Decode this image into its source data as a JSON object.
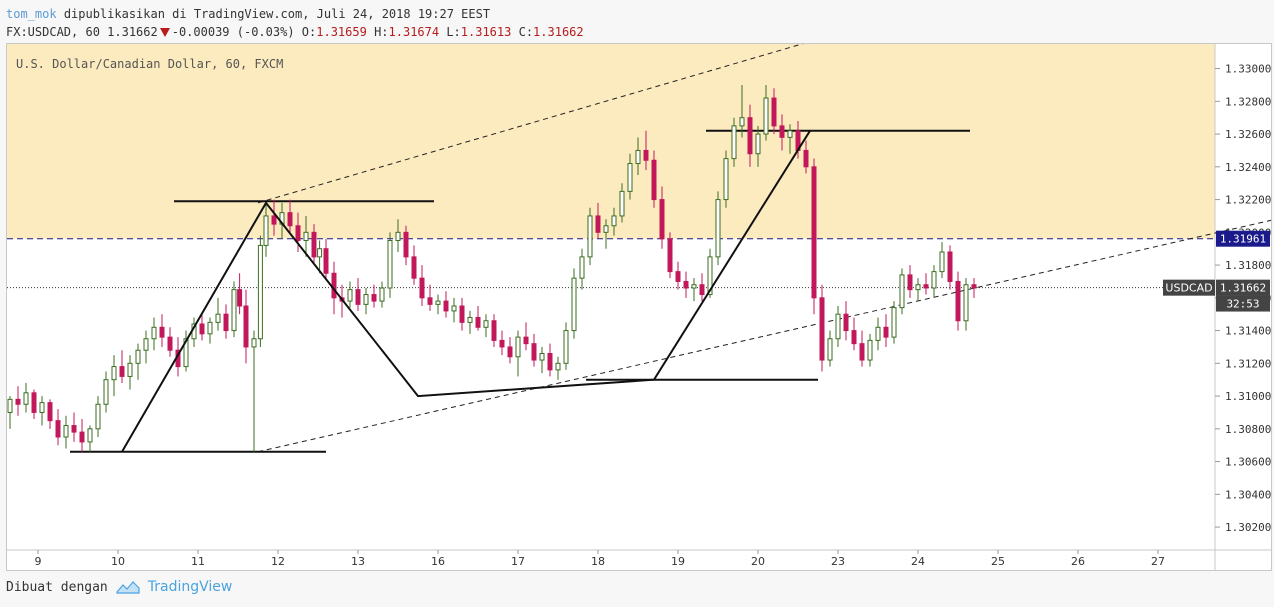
{
  "header": {
    "author": "tom_mok",
    "published": "dipublikasikan di TradingView.com, Juli 24, 2018 19:27 EEST",
    "symbol": "FX:USDCAD, 60",
    "last": "1.31662",
    "change": "-0.00039 (-0.03%)",
    "o_label": "O:",
    "o_value": "1.31659",
    "h_label": "H:",
    "h_value": "1.31674",
    "l_label": "L:",
    "l_value": "1.31613",
    "c_label": "C:",
    "c_value": "1.31662"
  },
  "chart_title": "U.S. Dollar/Canadian Dollar, 60, FXCM",
  "footer": {
    "made_with": "Dibuat dengan",
    "brand": "TradingView"
  },
  "chart_data": {
    "type": "candlestick",
    "x_ticks": [
      "9",
      "10",
      "11",
      "12",
      "13",
      "16",
      "17",
      "18",
      "19",
      "20",
      "23",
      "24",
      "25",
      "26",
      "27"
    ],
    "y_ticks": [
      "1.33000",
      "1.32800",
      "1.32600",
      "1.32400",
      "1.32200",
      "1.32000",
      "1.31800",
      "1.31600",
      "1.31400",
      "1.31200",
      "1.31000",
      "1.30800",
      "1.30600",
      "1.30400",
      "1.30200"
    ],
    "ylim": [
      1.3006,
      1.3315
    ],
    "price_labels": [
      {
        "text": "1.31961",
        "value": 1.31961,
        "color": "#1a1a8c"
      },
      {
        "text": "USDCAD",
        "value": 1.31662,
        "color": "#333333"
      },
      {
        "text": "1.31662",
        "value": 1.31662,
        "color": "#333333"
      },
      {
        "text": "32:53",
        "value": 1.31565,
        "color": "#333333"
      }
    ],
    "horizontal_lines": [
      {
        "value": 1.31961,
        "style": "dashed",
        "color": "#1a1a8c"
      },
      {
        "value": 1.31662,
        "style": "dotted",
        "color": "#333333"
      }
    ],
    "zone": {
      "from": 1.31961,
      "to": 1.3315,
      "color": "#fdebc0"
    },
    "path_points_xy": [
      [
        10.05,
        1.3066
      ],
      [
        11.85,
        1.3218
      ],
      [
        13.75,
        1.31
      ],
      [
        16.7,
        1.311
      ],
      [
        18.65,
        1.3262
      ]
    ],
    "support_resistance": [
      {
        "x1": 9.4,
        "x2": 12.6,
        "y": 1.3066
      },
      {
        "x1": 10.7,
        "x2": 13.95,
        "y": 1.3219
      },
      {
        "x1": 15.85,
        "x2": 18.75,
        "y": 1.311
      },
      {
        "x1": 17.35,
        "x2": 20.65,
        "y": 1.3262
      }
    ],
    "channel_lines": [
      {
        "x1": 11.75,
        "y1": 1.3218,
        "x2": 19.6,
        "y2": 1.333
      },
      {
        "x1": 11.75,
        "y1": 1.3066,
        "x2": 25.1,
        "y2": 1.3215
      }
    ],
    "bull_color": "#3b6e22",
    "bear_color": "#c2185b",
    "candles": [
      {
        "d": 8.45,
        "o": 1.311,
        "h": 1.3135,
        "l": 1.3095,
        "c": 1.3105
      },
      {
        "d": 8.55,
        "o": 1.3105,
        "h": 1.3115,
        "l": 1.3085,
        "c": 1.309
      },
      {
        "d": 8.65,
        "o": 1.309,
        "h": 1.31,
        "l": 1.308,
        "c": 1.3098
      },
      {
        "d": 8.75,
        "o": 1.3098,
        "h": 1.3106,
        "l": 1.3088,
        "c": 1.3095
      },
      {
        "d": 8.85,
        "o": 1.3095,
        "h": 1.3108,
        "l": 1.309,
        "c": 1.3102
      },
      {
        "d": 8.95,
        "o": 1.3102,
        "h": 1.3104,
        "l": 1.3086,
        "c": 1.309
      },
      {
        "d": 9.05,
        "o": 1.309,
        "h": 1.31,
        "l": 1.3082,
        "c": 1.3096
      },
      {
        "d": 9.15,
        "o": 1.3096,
        "h": 1.3098,
        "l": 1.308,
        "c": 1.3085
      },
      {
        "d": 9.25,
        "o": 1.3085,
        "h": 1.3092,
        "l": 1.307,
        "c": 1.3075
      },
      {
        "d": 9.35,
        "o": 1.3075,
        "h": 1.3088,
        "l": 1.3068,
        "c": 1.3082
      },
      {
        "d": 9.45,
        "o": 1.3082,
        "h": 1.309,
        "l": 1.3072,
        "c": 1.3078
      },
      {
        "d": 9.55,
        "o": 1.3078,
        "h": 1.3086,
        "l": 1.3066,
        "c": 1.3072
      },
      {
        "d": 9.65,
        "o": 1.3072,
        "h": 1.3082,
        "l": 1.3066,
        "c": 1.308
      },
      {
        "d": 9.75,
        "o": 1.308,
        "h": 1.31,
        "l": 1.3075,
        "c": 1.3095
      },
      {
        "d": 9.85,
        "o": 1.3095,
        "h": 1.3115,
        "l": 1.309,
        "c": 1.311
      },
      {
        "d": 9.95,
        "o": 1.311,
        "h": 1.3125,
        "l": 1.31,
        "c": 1.3118
      },
      {
        "d": 10.05,
        "o": 1.3118,
        "h": 1.3128,
        "l": 1.3108,
        "c": 1.3112
      },
      {
        "d": 10.15,
        "o": 1.3112,
        "h": 1.3125,
        "l": 1.3104,
        "c": 1.312
      },
      {
        "d": 10.25,
        "o": 1.312,
        "h": 1.3132,
        "l": 1.311,
        "c": 1.3128
      },
      {
        "d": 10.35,
        "o": 1.3128,
        "h": 1.314,
        "l": 1.312,
        "c": 1.3135
      },
      {
        "d": 10.45,
        "o": 1.3135,
        "h": 1.3148,
        "l": 1.3128,
        "c": 1.3142
      },
      {
        "d": 10.55,
        "o": 1.3142,
        "h": 1.315,
        "l": 1.313,
        "c": 1.3136
      },
      {
        "d": 10.65,
        "o": 1.3136,
        "h": 1.3142,
        "l": 1.3124,
        "c": 1.3128
      },
      {
        "d": 10.75,
        "o": 1.3128,
        "h": 1.3136,
        "l": 1.3112,
        "c": 1.3118
      },
      {
        "d": 10.85,
        "o": 1.3118,
        "h": 1.314,
        "l": 1.3115,
        "c": 1.3135
      },
      {
        "d": 10.95,
        "o": 1.3135,
        "h": 1.3148,
        "l": 1.313,
        "c": 1.3144
      },
      {
        "d": 11.05,
        "o": 1.3144,
        "h": 1.315,
        "l": 1.3134,
        "c": 1.3138
      },
      {
        "d": 11.15,
        "o": 1.3138,
        "h": 1.3148,
        "l": 1.3132,
        "c": 1.3145
      },
      {
        "d": 11.25,
        "o": 1.3145,
        "h": 1.316,
        "l": 1.314,
        "c": 1.315
      },
      {
        "d": 11.35,
        "o": 1.315,
        "h": 1.3156,
        "l": 1.3135,
        "c": 1.314
      },
      {
        "d": 11.45,
        "o": 1.314,
        "h": 1.317,
        "l": 1.3136,
        "c": 1.3165
      },
      {
        "d": 11.52,
        "o": 1.3165,
        "h": 1.3175,
        "l": 1.315,
        "c": 1.3155
      },
      {
        "d": 11.6,
        "o": 1.3155,
        "h": 1.3165,
        "l": 1.312,
        "c": 1.313
      },
      {
        "d": 11.7,
        "o": 1.313,
        "h": 1.314,
        "l": 1.3066,
        "c": 1.3135
      },
      {
        "d": 11.78,
        "o": 1.3135,
        "h": 1.3198,
        "l": 1.313,
        "c": 1.3192
      },
      {
        "d": 11.85,
        "o": 1.3192,
        "h": 1.3218,
        "l": 1.3185,
        "c": 1.321
      },
      {
        "d": 11.95,
        "o": 1.321,
        "h": 1.322,
        "l": 1.3198,
        "c": 1.3205
      },
      {
        "d": 12.05,
        "o": 1.3205,
        "h": 1.3218,
        "l": 1.3196,
        "c": 1.3212
      },
      {
        "d": 12.15,
        "o": 1.3212,
        "h": 1.322,
        "l": 1.32,
        "c": 1.3204
      },
      {
        "d": 12.25,
        "o": 1.3204,
        "h": 1.3212,
        "l": 1.3188,
        "c": 1.3195
      },
      {
        "d": 12.35,
        "o": 1.3195,
        "h": 1.321,
        "l": 1.3185,
        "c": 1.32
      },
      {
        "d": 12.45,
        "o": 1.32,
        "h": 1.3205,
        "l": 1.318,
        "c": 1.3185
      },
      {
        "d": 12.52,
        "o": 1.3185,
        "h": 1.3195,
        "l": 1.3175,
        "c": 1.319
      },
      {
        "d": 12.6,
        "o": 1.319,
        "h": 1.3196,
        "l": 1.3172,
        "c": 1.3175
      },
      {
        "d": 12.7,
        "o": 1.3175,
        "h": 1.3182,
        "l": 1.315,
        "c": 1.316
      },
      {
        "d": 12.8,
        "o": 1.316,
        "h": 1.3168,
        "l": 1.3148,
        "c": 1.3158
      },
      {
        "d": 12.9,
        "o": 1.3158,
        "h": 1.317,
        "l": 1.3154,
        "c": 1.3165
      },
      {
        "d": 13.0,
        "o": 1.3165,
        "h": 1.3172,
        "l": 1.3152,
        "c": 1.3156
      },
      {
        "d": 13.1,
        "o": 1.3156,
        "h": 1.3166,
        "l": 1.315,
        "c": 1.3162
      },
      {
        "d": 13.2,
        "o": 1.3162,
        "h": 1.3168,
        "l": 1.3154,
        "c": 1.3158
      },
      {
        "d": 13.3,
        "o": 1.3158,
        "h": 1.317,
        "l": 1.3154,
        "c": 1.3166
      },
      {
        "d": 13.4,
        "o": 1.3166,
        "h": 1.32,
        "l": 1.316,
        "c": 1.3195
      },
      {
        "d": 13.5,
        "o": 1.3195,
        "h": 1.3208,
        "l": 1.3188,
        "c": 1.32
      },
      {
        "d": 13.6,
        "o": 1.32,
        "h": 1.3204,
        "l": 1.318,
        "c": 1.3185
      },
      {
        "d": 13.7,
        "o": 1.3185,
        "h": 1.3192,
        "l": 1.3168,
        "c": 1.3172
      },
      {
        "d": 13.8,
        "o": 1.3172,
        "h": 1.318,
        "l": 1.3155,
        "c": 1.316
      },
      {
        "d": 13.9,
        "o": 1.316,
        "h": 1.3168,
        "l": 1.3152,
        "c": 1.3156
      },
      {
        "d": 14.0,
        "o": 1.3156,
        "h": 1.3162,
        "l": 1.315,
        "c": 1.3158
      },
      {
        "d": 14.1,
        "o": 1.3158,
        "h": 1.3164,
        "l": 1.3148,
        "c": 1.3152
      },
      {
        "d": 14.2,
        "o": 1.3152,
        "h": 1.316,
        "l": 1.3145,
        "c": 1.3155
      },
      {
        "d": 14.3,
        "o": 1.3155,
        "h": 1.316,
        "l": 1.314,
        "c": 1.3145
      },
      {
        "d": 14.4,
        "o": 1.3145,
        "h": 1.3152,
        "l": 1.3138,
        "c": 1.3148
      },
      {
        "d": 14.5,
        "o": 1.3148,
        "h": 1.3155,
        "l": 1.314,
        "c": 1.3142
      },
      {
        "d": 14.6,
        "o": 1.3142,
        "h": 1.315,
        "l": 1.3136,
        "c": 1.3146
      },
      {
        "d": 14.7,
        "o": 1.3146,
        "h": 1.315,
        "l": 1.313,
        "c": 1.3134
      },
      {
        "d": 14.8,
        "o": 1.3134,
        "h": 1.314,
        "l": 1.3125,
        "c": 1.313
      },
      {
        "d": 14.9,
        "o": 1.313,
        "h": 1.3136,
        "l": 1.312,
        "c": 1.3124
      },
      {
        "d": 15.0,
        "o": 1.3124,
        "h": 1.314,
        "l": 1.3112,
        "c": 1.3136
      },
      {
        "d": 15.1,
        "o": 1.3136,
        "h": 1.3145,
        "l": 1.3128,
        "c": 1.3132
      },
      {
        "d": 15.2,
        "o": 1.3132,
        "h": 1.3138,
        "l": 1.3118,
        "c": 1.3122
      },
      {
        "d": 15.3,
        "o": 1.3122,
        "h": 1.313,
        "l": 1.3114,
        "c": 1.3126
      },
      {
        "d": 15.4,
        "o": 1.3126,
        "h": 1.3132,
        "l": 1.3112,
        "c": 1.3116
      },
      {
        "d": 15.5,
        "o": 1.3116,
        "h": 1.3124,
        "l": 1.311,
        "c": 1.312
      },
      {
        "d": 15.6,
        "o": 1.312,
        "h": 1.3145,
        "l": 1.3116,
        "c": 1.314
      },
      {
        "d": 15.7,
        "o": 1.314,
        "h": 1.3178,
        "l": 1.3135,
        "c": 1.3172
      },
      {
        "d": 15.8,
        "o": 1.3172,
        "h": 1.319,
        "l": 1.3165,
        "c": 1.3185
      },
      {
        "d": 15.9,
        "o": 1.3185,
        "h": 1.3215,
        "l": 1.318,
        "c": 1.321
      },
      {
        "d": 16.0,
        "o": 1.321,
        "h": 1.3218,
        "l": 1.3196,
        "c": 1.32
      },
      {
        "d": 16.1,
        "o": 1.32,
        "h": 1.3208,
        "l": 1.319,
        "c": 1.3204
      },
      {
        "d": 16.2,
        "o": 1.3204,
        "h": 1.3215,
        "l": 1.3198,
        "c": 1.321
      },
      {
        "d": 16.3,
        "o": 1.321,
        "h": 1.323,
        "l": 1.3206,
        "c": 1.3225
      },
      {
        "d": 16.4,
        "o": 1.3225,
        "h": 1.3248,
        "l": 1.322,
        "c": 1.3242
      },
      {
        "d": 16.5,
        "o": 1.3242,
        "h": 1.3258,
        "l": 1.3235,
        "c": 1.325
      },
      {
        "d": 16.6,
        "o": 1.325,
        "h": 1.3262,
        "l": 1.3238,
        "c": 1.3244
      },
      {
        "d": 16.7,
        "o": 1.3244,
        "h": 1.325,
        "l": 1.3215,
        "c": 1.322
      },
      {
        "d": 16.8,
        "o": 1.322,
        "h": 1.3228,
        "l": 1.319,
        "c": 1.3196
      },
      {
        "d": 16.9,
        "o": 1.3196,
        "h": 1.32,
        "l": 1.3172,
        "c": 1.3176
      },
      {
        "d": 17.0,
        "o": 1.3176,
        "h": 1.3182,
        "l": 1.3165,
        "c": 1.317
      },
      {
        "d": 17.1,
        "o": 1.317,
        "h": 1.3176,
        "l": 1.316,
        "c": 1.3166
      },
      {
        "d": 17.2,
        "o": 1.3166,
        "h": 1.3172,
        "l": 1.3158,
        "c": 1.3168
      },
      {
        "d": 17.3,
        "o": 1.3168,
        "h": 1.3175,
        "l": 1.3158,
        "c": 1.3162
      },
      {
        "d": 17.4,
        "o": 1.3162,
        "h": 1.319,
        "l": 1.316,
        "c": 1.3185
      },
      {
        "d": 17.5,
        "o": 1.3185,
        "h": 1.3225,
        "l": 1.318,
        "c": 1.322
      },
      {
        "d": 17.6,
        "o": 1.322,
        "h": 1.325,
        "l": 1.3215,
        "c": 1.3245
      },
      {
        "d": 17.7,
        "o": 1.3245,
        "h": 1.327,
        "l": 1.324,
        "c": 1.3265
      },
      {
        "d": 17.8,
        "o": 1.3265,
        "h": 1.329,
        "l": 1.3258,
        "c": 1.327
      },
      {
        "d": 17.9,
        "o": 1.327,
        "h": 1.3278,
        "l": 1.324,
        "c": 1.3248
      },
      {
        "d": 18.0,
        "o": 1.3248,
        "h": 1.3265,
        "l": 1.324,
        "c": 1.326
      },
      {
        "d": 18.1,
        "o": 1.326,
        "h": 1.329,
        "l": 1.3256,
        "c": 1.3282
      },
      {
        "d": 18.2,
        "o": 1.3282,
        "h": 1.3288,
        "l": 1.326,
        "c": 1.3265
      },
      {
        "d": 18.3,
        "o": 1.3265,
        "h": 1.3272,
        "l": 1.325,
        "c": 1.3258
      },
      {
        "d": 18.4,
        "o": 1.3258,
        "h": 1.3266,
        "l": 1.3248,
        "c": 1.3262
      },
      {
        "d": 18.5,
        "o": 1.3262,
        "h": 1.3268,
        "l": 1.3245,
        "c": 1.325
      },
      {
        "d": 18.6,
        "o": 1.325,
        "h": 1.3256,
        "l": 1.3236,
        "c": 1.324
      },
      {
        "d": 18.7,
        "o": 1.324,
        "h": 1.3245,
        "l": 1.315,
        "c": 1.316
      },
      {
        "d": 18.8,
        "o": 1.316,
        "h": 1.3168,
        "l": 1.3115,
        "c": 1.3122
      },
      {
        "d": 18.9,
        "o": 1.3122,
        "h": 1.314,
        "l": 1.3118,
        "c": 1.3135
      },
      {
        "d": 19.0,
        "o": 1.3135,
        "h": 1.3155,
        "l": 1.313,
        "c": 1.315
      },
      {
        "d": 19.1,
        "o": 1.315,
        "h": 1.3158,
        "l": 1.3134,
        "c": 1.314
      },
      {
        "d": 19.2,
        "o": 1.314,
        "h": 1.3148,
        "l": 1.3128,
        "c": 1.3132
      },
      {
        "d": 19.3,
        "o": 1.3132,
        "h": 1.314,
        "l": 1.3118,
        "c": 1.3122
      },
      {
        "d": 19.4,
        "o": 1.3122,
        "h": 1.3138,
        "l": 1.3118,
        "c": 1.3134
      },
      {
        "d": 19.5,
        "o": 1.3134,
        "h": 1.3148,
        "l": 1.3128,
        "c": 1.3142
      },
      {
        "d": 19.6,
        "o": 1.3142,
        "h": 1.315,
        "l": 1.313,
        "c": 1.3136
      },
      {
        "d": 19.7,
        "o": 1.3136,
        "h": 1.3158,
        "l": 1.3132,
        "c": 1.3154
      },
      {
        "d": 19.8,
        "o": 1.3154,
        "h": 1.3178,
        "l": 1.315,
        "c": 1.3174
      },
      {
        "d": 19.9,
        "o": 1.3174,
        "h": 1.318,
        "l": 1.316,
        "c": 1.3165
      },
      {
        "d": 20.0,
        "o": 1.3165,
        "h": 1.3172,
        "l": 1.3158,
        "c": 1.3168
      },
      {
        "d": 20.1,
        "o": 1.3168,
        "h": 1.3175,
        "l": 1.3162,
        "c": 1.3166
      },
      {
        "d": 20.2,
        "o": 1.3166,
        "h": 1.318,
        "l": 1.316,
        "c": 1.3176
      },
      {
        "d": 20.3,
        "o": 1.3176,
        "h": 1.3194,
        "l": 1.3172,
        "c": 1.3188
      },
      {
        "d": 20.4,
        "o": 1.3188,
        "h": 1.3192,
        "l": 1.3165,
        "c": 1.317
      },
      {
        "d": 20.5,
        "o": 1.317,
        "h": 1.3176,
        "l": 1.314,
        "c": 1.3146
      },
      {
        "d": 20.6,
        "o": 1.3146,
        "h": 1.3172,
        "l": 1.314,
        "c": 1.3168
      },
      {
        "d": 20.7,
        "o": 1.3168,
        "h": 1.3172,
        "l": 1.316,
        "c": 1.3166
      }
    ]
  }
}
